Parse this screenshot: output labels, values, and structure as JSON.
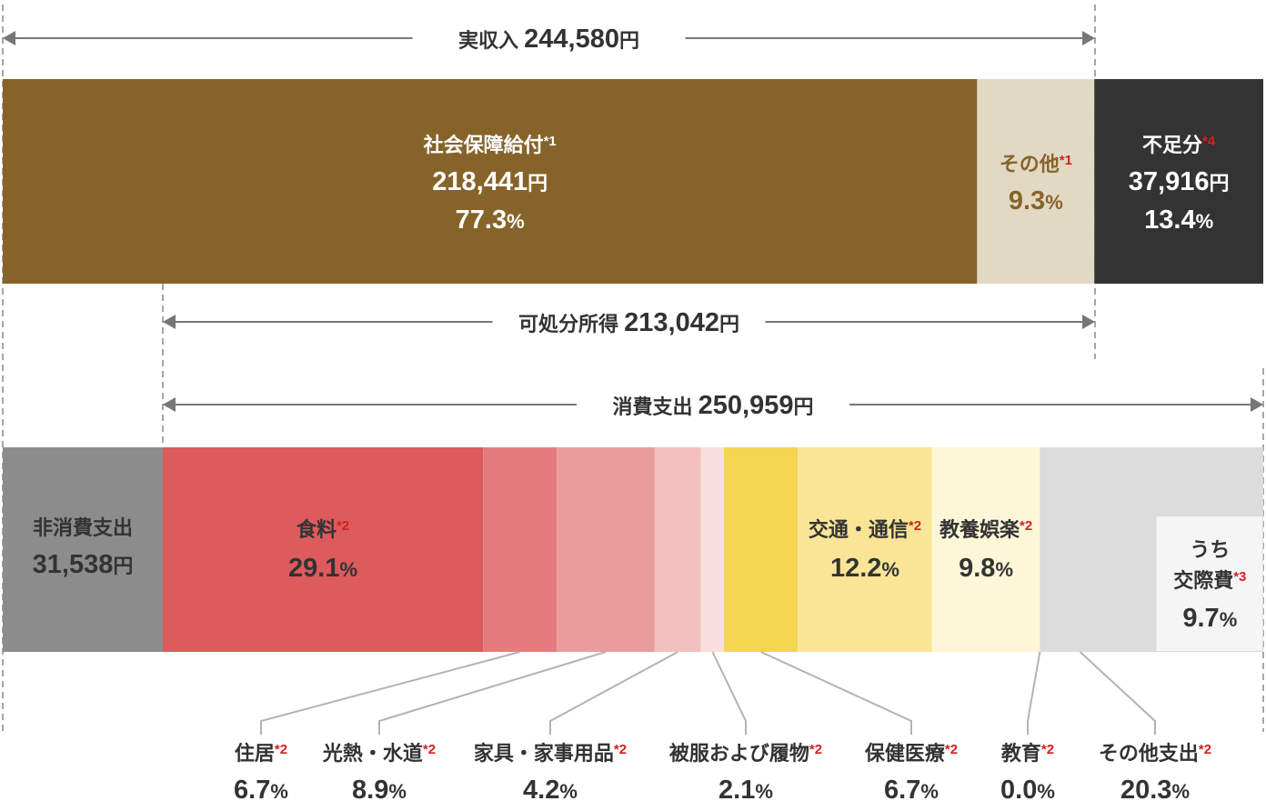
{
  "chart_data": {
    "type": "bar",
    "title": "",
    "income": {
      "total_label": "実収入",
      "total_value": "244,580",
      "segments": [
        {
          "name": "社会保障給付",
          "note": "*1",
          "amount": "218,441",
          "pct": 77.3,
          "color": "#866429"
        },
        {
          "name": "その他",
          "note": "*1",
          "pct": 9.3,
          "color": "#e2d9c5"
        },
        {
          "name": "不足分",
          "note": "*4",
          "amount": "37,916",
          "pct": 13.4,
          "color": "#333333"
        }
      ]
    },
    "disposable": {
      "label": "可処分所得",
      "value": "213,042"
    },
    "consumption": {
      "label": "消費支出",
      "value": "250,959"
    },
    "non_consumption": {
      "name": "非消費支出",
      "amount": "31,538",
      "color": "#8c8c8c"
    },
    "expenditure": [
      {
        "name": "食料",
        "note": "*2",
        "pct": 29.1,
        "color": "#dd5a5d"
      },
      {
        "name": "住居",
        "note": "*2",
        "pct": 6.7,
        "color": "#e47c7e"
      },
      {
        "name": "光熱・水道",
        "note": "*2",
        "pct": 8.9,
        "color": "#ea9c9c"
      },
      {
        "name": "家具・家事用品",
        "note": "*2",
        "pct": 4.2,
        "color": "#f2bfbf"
      },
      {
        "name": "被服および履物",
        "note": "*2",
        "pct": 2.1,
        "color": "#f8dedd"
      },
      {
        "name": "保健医療",
        "note": "*2",
        "pct": 6.7,
        "color": "#f5d44f"
      },
      {
        "name": "交通・通信",
        "note": "*2",
        "pct": 12.2,
        "color": "#fae597"
      },
      {
        "name": "教養娯楽",
        "note": "*2",
        "pct": 9.8,
        "color": "#fdf7d8"
      },
      {
        "name": "教育",
        "note": "*2",
        "pct": 0.0,
        "color": "#dcdcdc"
      },
      {
        "name": "その他支出",
        "note": "*2",
        "pct": 20.3,
        "color": "#dcdcdc"
      }
    ],
    "sub_item": {
      "prefix": "うち",
      "name": "交際費",
      "note": "*3",
      "pct": 9.7,
      "color": "#f5f5f5"
    },
    "units": {
      "yen": "円",
      "percent": "%"
    },
    "colors": {
      "text_dark": "#333333",
      "text_white": "#ffffff",
      "note_red": "#d42020",
      "line": "#b3b3b3",
      "arrow": "#777777"
    }
  }
}
